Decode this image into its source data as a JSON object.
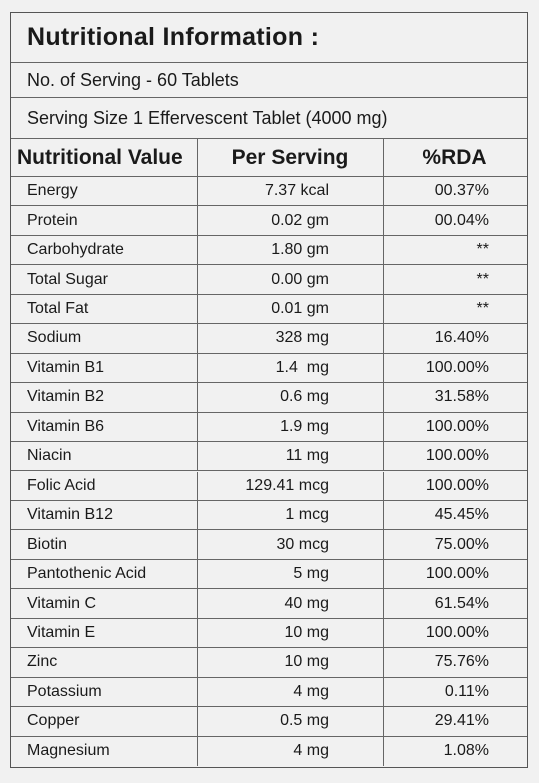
{
  "title": "Nutritional Information :",
  "servings": "No. of Serving - 60 Tablets",
  "serving_size": "Serving Size 1 Effervescent Tablet (4000 mg)",
  "table": {
    "header": [
      "Nutritional Value",
      "Per Serving",
      "%RDA"
    ],
    "rows": [
      [
        "Energy",
        "7.37 kcal",
        "00.37%"
      ],
      [
        "Protein",
        "0.02 gm",
        "00.04%"
      ],
      [
        "Carbohydrate",
        "1.80 gm",
        "**"
      ],
      [
        "Total Sugar",
        "0.00 gm",
        "**"
      ],
      [
        "Total Fat",
        "0.01 gm",
        "**"
      ],
      [
        "Sodium",
        "328 mg",
        "16.40%"
      ],
      [
        "Vitamin B1",
        "1.4  mg",
        "100.00%"
      ],
      [
        "Vitamin B2",
        "0.6 mg",
        "31.58%"
      ],
      [
        "Vitamin B6",
        "1.9 mg",
        "100.00%"
      ],
      [
        "Niacin",
        "11 mg",
        "100.00%"
      ],
      [
        "Folic Acid",
        "129.41 mcg",
        "100.00%"
      ],
      [
        "Vitamin B12",
        "1 mcg",
        "45.45%"
      ],
      [
        "Biotin",
        "30 mcg",
        "75.00%"
      ],
      [
        "Pantothenic Acid",
        "5 mg",
        "100.00%"
      ],
      [
        "Vitamin C",
        "40 mg",
        "61.54%"
      ],
      [
        "Vitamin E",
        "10 mg",
        "100.00%"
      ],
      [
        "Zinc",
        "10 mg",
        "75.76%"
      ],
      [
        "Potassium",
        "4 mg",
        "0.11%"
      ],
      [
        "Copper",
        "0.5 mg",
        "29.41%"
      ],
      [
        "Magnesium",
        "4 mg",
        "1.08%"
      ]
    ]
  }
}
